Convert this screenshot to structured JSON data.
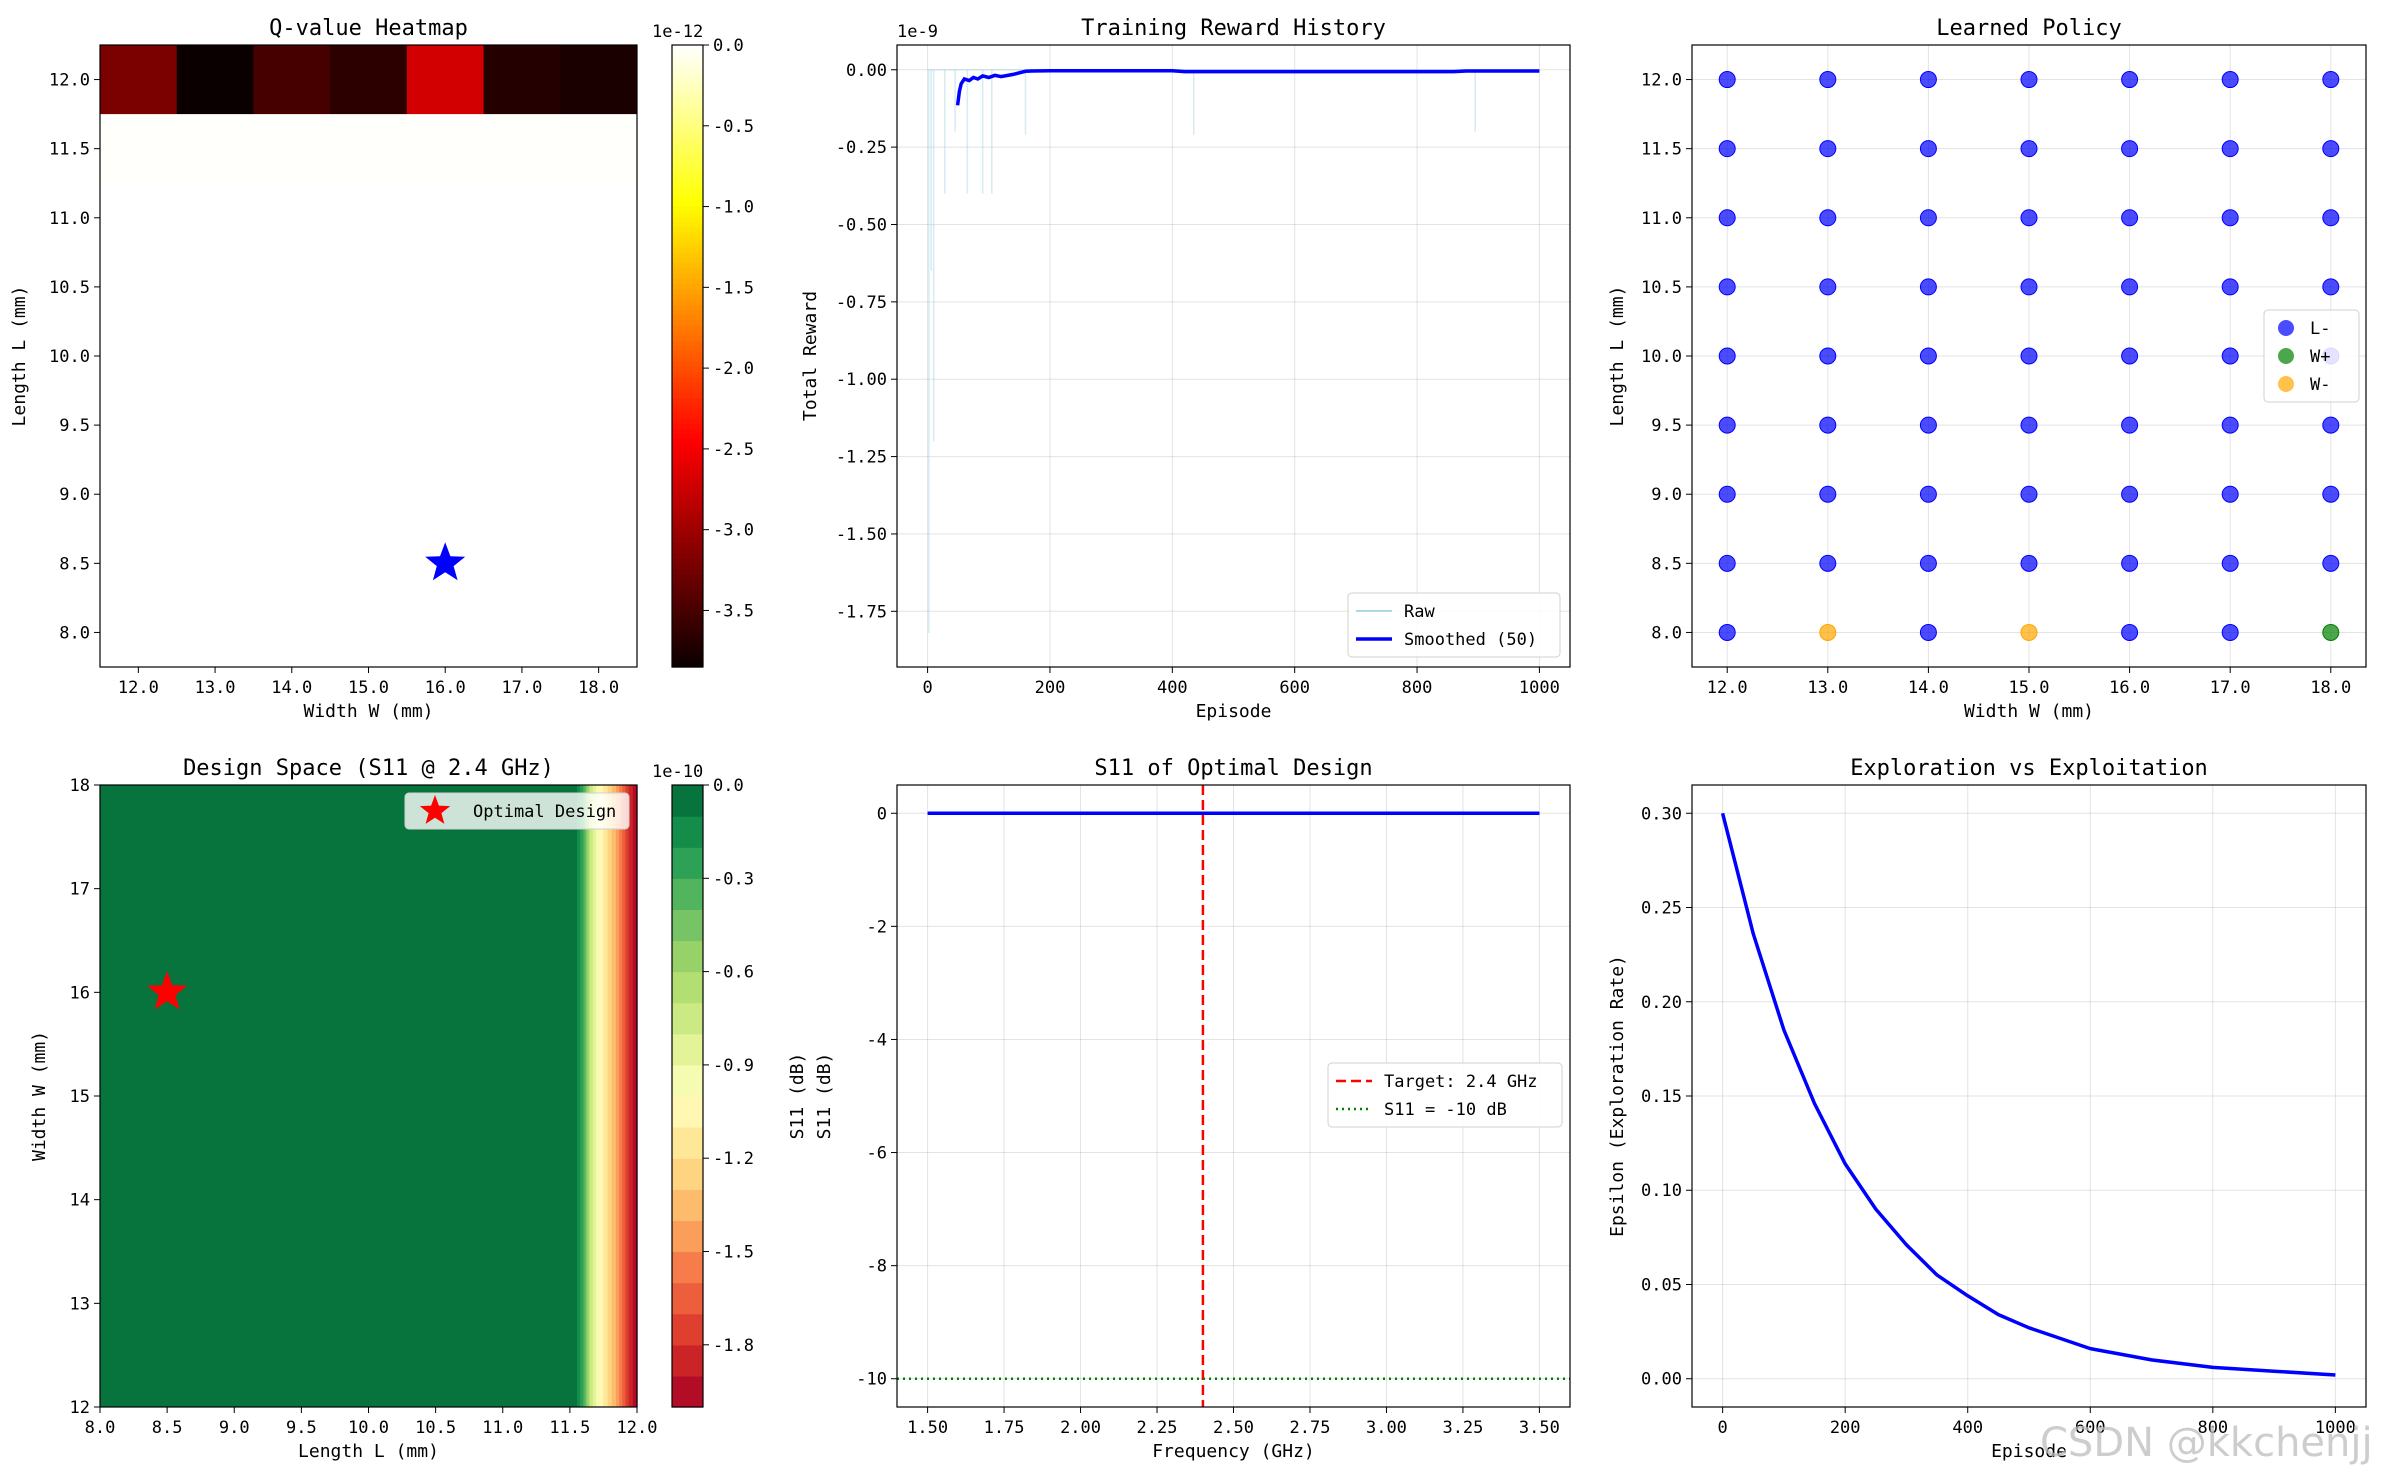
{
  "watermark": "CSDN @kkchenjj",
  "chart_data": [
    {
      "id": "qheat",
      "type": "heatmap",
      "title": "Q-value Heatmap",
      "xlabel": "Width W (mm)",
      "ylabel": "Length L (mm)",
      "xlim": [
        11.5,
        18.5
      ],
      "ylim": [
        7.75,
        12.25
      ],
      "xticks": [
        12,
        13,
        14,
        15,
        16,
        17,
        18
      ],
      "xtick_labels": [
        "12.0",
        "13.0",
        "14.0",
        "15.0",
        "16.0",
        "17.0",
        "18.0"
      ],
      "yticks": [
        8,
        8.5,
        9,
        9.5,
        10,
        10.5,
        11,
        11.5,
        12
      ],
      "ytick_labels": [
        "8.0",
        "8.5",
        "9.0",
        "9.5",
        "10.0",
        "10.5",
        "11.0",
        "11.5",
        "12.0"
      ],
      "rows": [
        {
          "y": 12.0,
          "x": [
            12,
            13,
            14,
            15,
            16,
            17,
            18
          ],
          "values": [
            -3.2,
            -3.85,
            -3.5,
            -3.65,
            -2.7,
            -3.7,
            -3.75
          ]
        },
        {
          "y": 11.5,
          "x": [
            12,
            13,
            14,
            15,
            16,
            17,
            18
          ],
          "values": [
            -0.01,
            -0.01,
            -0.01,
            -0.01,
            -0.01,
            -0.01,
            -0.01
          ]
        }
      ],
      "marker": {
        "type": "star",
        "x": 16.0,
        "y": 8.5,
        "color": "#0000ff"
      },
      "colorbar": {
        "cmap": "hot",
        "min": -3.85,
        "max": 0.0,
        "exponent_label": "1e-12",
        "ticks": [
          0.0,
          -0.5,
          -1.0,
          -1.5,
          -2.0,
          -2.5,
          -3.0,
          -3.5
        ],
        "tick_labels": [
          "0.0",
          "-0.5",
          "-1.0",
          "-1.5",
          "-2.0",
          "-2.5",
          "-3.0",
          "-3.5"
        ]
      }
    },
    {
      "id": "reward",
      "type": "line",
      "title": "Training Reward History",
      "xlabel": "Episode",
      "ylabel": "Total Reward",
      "exponent_label": "1e-9",
      "xlim": [
        -50,
        1050
      ],
      "ylim": [
        -1.93,
        0.08
      ],
      "xticks": [
        0,
        200,
        400,
        600,
        800,
        1000
      ],
      "xtick_labels": [
        "0",
        "200",
        "400",
        "600",
        "800",
        "1000"
      ],
      "yticks": [
        0.0,
        -0.25,
        -0.5,
        -0.75,
        -1.0,
        -1.25,
        -1.5,
        -1.75
      ],
      "ytick_labels": [
        "0.00",
        "-0.25",
        "-0.50",
        "-0.75",
        "-1.00",
        "-1.25",
        "-1.50",
        "-1.75"
      ],
      "series": [
        {
          "name": "Raw",
          "color": "#add8e6",
          "spikes": [
            {
              "x": 2,
              "y": -1.82
            },
            {
              "x": 6,
              "y": -0.65
            },
            {
              "x": 10,
              "y": -1.2
            },
            {
              "x": 28,
              "y": -0.4
            },
            {
              "x": 45,
              "y": -0.2
            },
            {
              "x": 65,
              "y": -0.4
            },
            {
              "x": 90,
              "y": -0.4
            },
            {
              "x": 105,
              "y": -0.4
            },
            {
              "x": 160,
              "y": -0.21
            },
            {
              "x": 435,
              "y": -0.21
            },
            {
              "x": 895,
              "y": -0.2
            }
          ]
        },
        {
          "name": "Smoothed (50)",
          "color": "#0000ff",
          "x": [
            49,
            52,
            55,
            60,
            68,
            75,
            82,
            90,
            100,
            110,
            120,
            140,
            160,
            170,
            200,
            400,
            420,
            440,
            860,
            880,
            1000
          ],
          "y": [
            -0.115,
            -0.07,
            -0.045,
            -0.03,
            -0.035,
            -0.025,
            -0.03,
            -0.02,
            -0.025,
            -0.018,
            -0.022,
            -0.015,
            -0.005,
            -0.004,
            -0.003,
            -0.003,
            -0.006,
            -0.006,
            -0.006,
            -0.004,
            -0.004
          ]
        }
      ],
      "legend": {
        "position": "lower right",
        "entries": [
          "Raw",
          "Smoothed (50)"
        ]
      }
    },
    {
      "id": "policy",
      "type": "scatter",
      "title": "Learned Policy",
      "xlabel": "Width W (mm)",
      "ylabel": "Length L (mm)",
      "xlim": [
        11.65,
        18.35
      ],
      "ylim": [
        7.75,
        12.25
      ],
      "xticks": [
        12,
        13,
        14,
        15,
        16,
        17,
        18
      ],
      "xtick_labels": [
        "12.0",
        "13.0",
        "14.0",
        "15.0",
        "16.0",
        "17.0",
        "18.0"
      ],
      "yticks": [
        8,
        8.5,
        9,
        9.5,
        10,
        10.5,
        11,
        11.5,
        12
      ],
      "ytick_labels": [
        "8.0",
        "8.5",
        "9.0",
        "9.5",
        "10.0",
        "10.5",
        "11.0",
        "11.5",
        "12.0"
      ],
      "grid_x": [
        12,
        13,
        14,
        15,
        16,
        17,
        18
      ],
      "grid_y": [
        8,
        8.5,
        9,
        9.5,
        10,
        10.5,
        11,
        11.5,
        12
      ],
      "default_action": "L-",
      "exceptions": [
        {
          "x": 13,
          "y": 8.0,
          "action": "W-"
        },
        {
          "x": 15,
          "y": 8.0,
          "action": "W-"
        },
        {
          "x": 18,
          "y": 8.0,
          "action": "W+"
        }
      ],
      "action_colors": {
        "L-": "#0000ff",
        "W+": "#008000",
        "W-": "#ffa500"
      },
      "legend": {
        "position": "center right",
        "entries": [
          "L-",
          "W+",
          "W-"
        ]
      }
    },
    {
      "id": "design",
      "type": "heatmap",
      "title": "Design Space (S11 @ 2.4 GHz)",
      "xlabel": "Length L (mm)",
      "ylabel": "Width W (mm)",
      "xlim": [
        8.0,
        12.0
      ],
      "ylim": [
        12,
        18
      ],
      "xticks": [
        8.0,
        8.5,
        9.0,
        9.5,
        10.0,
        10.5,
        11.0,
        11.5,
        12.0
      ],
      "xtick_labels": [
        "8.0",
        "8.5",
        "9.0",
        "9.5",
        "10.0",
        "10.5",
        "11.0",
        "11.5",
        "12.0"
      ],
      "yticks": [
        12,
        13,
        14,
        15,
        16,
        17,
        18
      ],
      "ytick_labels": [
        "12",
        "13",
        "14",
        "15",
        "16",
        "17",
        "18"
      ],
      "field": {
        "flat_until_L": 11.53,
        "profile": [
          {
            "L": 11.53,
            "v": 0.0
          },
          {
            "L": 11.6,
            "v": -0.3
          },
          {
            "L": 11.65,
            "v": -0.7
          },
          {
            "L": 11.72,
            "v": -1.0
          },
          {
            "L": 11.8,
            "v": -1.25
          },
          {
            "L": 11.88,
            "v": -1.55
          },
          {
            "L": 11.95,
            "v": -1.85
          },
          {
            "L": 12.0,
            "v": -2.0
          }
        ]
      },
      "marker": {
        "type": "star",
        "x": 8.5,
        "y": 16.0,
        "color": "#ff0000",
        "label": "Optimal Design"
      },
      "legend": {
        "position": "upper right",
        "entries": [
          "Optimal Design"
        ]
      },
      "colorbar": {
        "cmap": "RdYlGn",
        "levels": 20,
        "min": -2.0,
        "max": 0.0,
        "label": "S11 (dB)",
        "exponent_label": "1e-10",
        "ticks": [
          0.0,
          -0.3,
          -0.6,
          -0.9,
          -1.2,
          -1.5,
          -1.8
        ],
        "tick_labels": [
          "0.0",
          "-0.3",
          "-0.6",
          "-0.9",
          "-1.2",
          "-1.5",
          "-1.8"
        ]
      }
    },
    {
      "id": "s11",
      "type": "line",
      "title": "S11 of Optimal Design",
      "xlabel": "Frequency (GHz)",
      "ylabel": "S11 (dB)",
      "xlim": [
        1.4,
        3.6
      ],
      "ylim": [
        -10.5,
        0.5
      ],
      "xticks": [
        1.5,
        1.75,
        2.0,
        2.25,
        2.5,
        2.75,
        3.0,
        3.25,
        3.5
      ],
      "xtick_labels": [
        "1.50",
        "1.75",
        "2.00",
        "2.25",
        "2.50",
        "2.75",
        "3.00",
        "3.25",
        "3.50"
      ],
      "yticks": [
        0,
        -2,
        -4,
        -6,
        -8,
        -10
      ],
      "ytick_labels": [
        "0",
        "-2",
        "-4",
        "-6",
        "-8",
        "-10"
      ],
      "series": [
        {
          "name": "S11",
          "color": "#0000ff",
          "x": [
            1.5,
            3.5
          ],
          "y": [
            0,
            0
          ]
        }
      ],
      "vline": {
        "x": 2.4,
        "label": "Target: 2.4 GHz",
        "color": "#ff0000",
        "style": "dashed"
      },
      "hline": {
        "y": -10,
        "label": "S11 = -10 dB",
        "color": "#008000",
        "style": "dotted"
      },
      "legend": {
        "position": "center right",
        "entries": [
          "Target: 2.4 GHz",
          "S11 = -10 dB"
        ]
      }
    },
    {
      "id": "epsilon",
      "type": "line",
      "title": "Exploration vs Exploitation",
      "xlabel": "Episode",
      "ylabel": "Epsilon (Exploration Rate)",
      "xlim": [
        -50,
        1050
      ],
      "ylim": [
        -0.015,
        0.315
      ],
      "xticks": [
        0,
        200,
        400,
        600,
        800,
        1000
      ],
      "xtick_labels": [
        "0",
        "200",
        "400",
        "600",
        "800",
        "1000"
      ],
      "yticks": [
        0.0,
        0.05,
        0.1,
        0.15,
        0.2,
        0.25,
        0.3
      ],
      "ytick_labels": [
        "0.00",
        "0.05",
        "0.10",
        "0.15",
        "0.20",
        "0.25",
        "0.30"
      ],
      "series": [
        {
          "name": "epsilon",
          "color": "#0000ff",
          "x": [
            0,
            50,
            100,
            150,
            200,
            250,
            300,
            350,
            400,
            450,
            500,
            600,
            700,
            800,
            900,
            1000
          ],
          "y": [
            0.3,
            0.236,
            0.185,
            0.146,
            0.114,
            0.09,
            0.071,
            0.055,
            0.044,
            0.034,
            0.027,
            0.016,
            0.01,
            0.006,
            0.004,
            0.002
          ]
        }
      ]
    }
  ]
}
